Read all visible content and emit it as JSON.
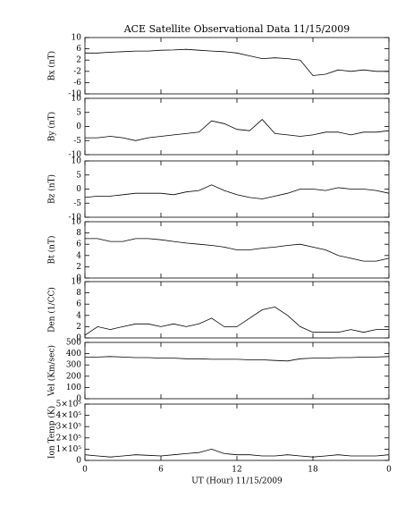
{
  "chart_data": [
    {
      "type": "line",
      "title": "ACE Satellite Observational Data  11/15/2009",
      "ylabel": "Bx (nT)",
      "x": [
        0,
        1,
        2,
        3,
        4,
        5,
        6,
        7,
        8,
        9,
        10,
        11,
        12,
        13,
        14,
        15,
        16,
        17,
        18,
        19,
        20,
        21,
        22,
        23,
        24
      ],
      "values": [
        4.5,
        4.5,
        4.8,
        5,
        5.2,
        5.2,
        5.5,
        5.6,
        5.8,
        5.5,
        5.2,
        5,
        4.5,
        3.5,
        2.5,
        2.8,
        2.5,
        2.0,
        -3.5,
        -3,
        -1.5,
        -2,
        -1.5,
        -2,
        -2
      ],
      "xlim": [
        0,
        24
      ],
      "xticks": [
        0,
        6,
        12,
        18,
        24
      ],
      "ylim": [
        -10,
        10
      ],
      "yticks": [
        -10,
        -6,
        -2,
        2,
        6,
        10
      ],
      "color": "#000000"
    },
    {
      "type": "line",
      "ylabel": "By (nT)",
      "x": [
        0,
        1,
        2,
        3,
        4,
        5,
        6,
        7,
        8,
        9,
        10,
        11,
        12,
        13,
        14,
        15,
        16,
        17,
        18,
        19,
        20,
        21,
        22,
        23,
        24
      ],
      "values": [
        -4,
        -4,
        -3.5,
        -4,
        -5,
        -4,
        -3.5,
        -3,
        -2.5,
        -2,
        2,
        1,
        -1,
        -1.5,
        2.5,
        -2.5,
        -3,
        -3.5,
        -3,
        -2,
        -2,
        -3,
        -2,
        -2,
        -1.5
      ],
      "xlim": [
        0,
        24
      ],
      "xticks": [
        0,
        6,
        12,
        18,
        24
      ],
      "ylim": [
        -10,
        10
      ],
      "yticks": [
        -10,
        -5,
        0,
        5,
        10
      ],
      "color": "#000000"
    },
    {
      "type": "line",
      "ylabel": "Bz (nT)",
      "x": [
        0,
        1,
        2,
        3,
        4,
        5,
        6,
        7,
        8,
        9,
        10,
        11,
        12,
        13,
        14,
        15,
        16,
        17,
        18,
        19,
        20,
        21,
        22,
        23,
        24
      ],
      "values": [
        -3,
        -2.5,
        -2.5,
        -2,
        -1.5,
        -1.5,
        -1.5,
        -2,
        -1,
        -0.5,
        1.5,
        -0.5,
        -2,
        -3,
        -3.5,
        -2.5,
        -1.5,
        0,
        0,
        -0.5,
        0.5,
        0,
        0,
        -0.5,
        -1.5
      ],
      "xlim": [
        0,
        24
      ],
      "xticks": [
        0,
        6,
        12,
        18,
        24
      ],
      "ylim": [
        -10,
        10
      ],
      "yticks": [
        -10,
        -5,
        0,
        5,
        10
      ],
      "color": "#000000"
    },
    {
      "type": "line",
      "ylabel": "Bt (nT)",
      "x": [
        0,
        1,
        2,
        3,
        4,
        5,
        6,
        7,
        8,
        9,
        10,
        11,
        12,
        13,
        14,
        15,
        16,
        17,
        18,
        19,
        20,
        21,
        22,
        23,
        24
      ],
      "values": [
        7,
        7,
        6.5,
        6.5,
        7,
        7,
        6.8,
        6.5,
        6.2,
        6,
        5.8,
        5.5,
        5,
        5,
        5.3,
        5.5,
        5.8,
        6,
        5.5,
        5,
        4,
        3.5,
        3,
        3,
        3.5
      ],
      "xlim": [
        0,
        24
      ],
      "xticks": [
        0,
        6,
        12,
        18,
        24
      ],
      "ylim": [
        0,
        10
      ],
      "yticks": [
        0,
        2,
        4,
        6,
        8,
        10
      ],
      "color": "#000000"
    },
    {
      "type": "line",
      "ylabel": "Den (1/CC)",
      "x": [
        0,
        1,
        2,
        3,
        4,
        5,
        6,
        7,
        8,
        9,
        10,
        11,
        12,
        13,
        14,
        15,
        16,
        17,
        18,
        19,
        20,
        21,
        22,
        23,
        24
      ],
      "values": [
        0.5,
        2,
        1.5,
        2,
        2.5,
        2.5,
        2,
        2.5,
        2,
        2.5,
        3.5,
        2,
        2,
        3.5,
        5,
        5.5,
        4,
        2,
        1,
        1,
        1,
        1.5,
        1,
        1.5,
        1.5
      ],
      "xlim": [
        0,
        24
      ],
      "xticks": [
        0,
        6,
        12,
        18,
        24
      ],
      "ylim": [
        0,
        10
      ],
      "yticks": [
        0,
        2,
        4,
        6,
        8,
        10
      ],
      "color": "#000000"
    },
    {
      "type": "line",
      "ylabel": "Vel (Km/sec)",
      "x": [
        0,
        1,
        2,
        3,
        4,
        5,
        6,
        7,
        8,
        9,
        10,
        11,
        12,
        13,
        14,
        15,
        16,
        17,
        18,
        19,
        20,
        21,
        22,
        23,
        24
      ],
      "values": [
        370,
        370,
        375,
        370,
        365,
        365,
        360,
        360,
        355,
        355,
        350,
        350,
        350,
        345,
        345,
        340,
        335,
        355,
        360,
        360,
        365,
        365,
        370,
        370,
        375
      ],
      "xlim": [
        0,
        24
      ],
      "xticks": [
        0,
        6,
        12,
        18,
        24
      ],
      "ylim": [
        0,
        500
      ],
      "yticks": [
        0,
        100,
        200,
        300,
        400,
        500
      ],
      "color": "#000000"
    },
    {
      "type": "line",
      "ylabel": "Ion Temp (K)",
      "xlabel": "UT (Hour)  11/15/2009",
      "x": [
        0,
        1,
        2,
        3,
        4,
        5,
        6,
        7,
        8,
        9,
        10,
        11,
        12,
        13,
        14,
        15,
        16,
        17,
        18,
        19,
        20,
        21,
        22,
        23,
        24
      ],
      "values": [
        50000,
        40000,
        30000,
        40000,
        50000,
        45000,
        40000,
        50000,
        60000,
        70000,
        100000,
        60000,
        50000,
        50000,
        40000,
        40000,
        50000,
        40000,
        30000,
        40000,
        50000,
        40000,
        40000,
        40000,
        50000
      ],
      "xlim": [
        0,
        24
      ],
      "xticks": [
        0,
        6,
        12,
        18,
        {
          "value": 24,
          "label": "0"
        }
      ],
      "ylim": [
        0,
        500000
      ],
      "yticks": [
        0,
        {
          "value": 100000,
          "label": "1×10⁵"
        },
        {
          "value": 200000,
          "label": "2×10⁵"
        },
        {
          "value": 300000,
          "label": "3×10⁵"
        },
        {
          "value": 400000,
          "label": "4×10⁵"
        },
        {
          "value": 500000,
          "label": "5×10⁵"
        }
      ],
      "color": "#000000"
    }
  ]
}
